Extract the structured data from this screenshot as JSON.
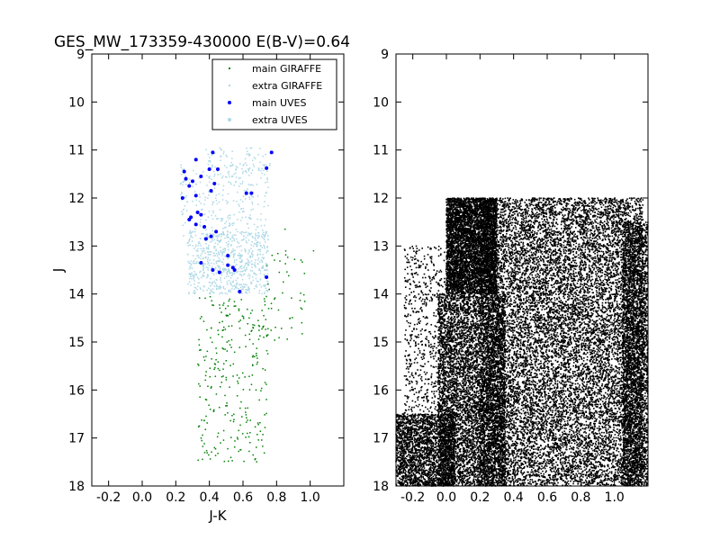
{
  "title": "GES_MW_173359-430000 E(B-V)=0.64",
  "chart_data": [
    {
      "type": "scatter",
      "panel": "left",
      "title": "GES_MW_173359-430000 E(B-V)=0.64",
      "xlabel": "J-K",
      "ylabel": "J",
      "xlim": [
        -0.3,
        1.2
      ],
      "ylim": [
        18,
        9
      ],
      "y_inverted": true,
      "x_ticks": [
        "-0.2",
        "0.0",
        "0.2",
        "0.4",
        "0.6",
        "0.8",
        "1.0"
      ],
      "x_tick_values": [
        -0.2,
        0.0,
        0.2,
        0.4,
        0.6,
        0.8,
        1.0
      ],
      "y_ticks": [
        "9",
        "10",
        "11",
        "12",
        "13",
        "14",
        "15",
        "16",
        "17",
        "18"
      ],
      "y_tick_values": [
        9,
        10,
        11,
        12,
        13,
        14,
        15,
        16,
        17,
        18
      ],
      "grid": false,
      "legend_position": "top-right",
      "series": [
        {
          "name": "main GIRAFFE",
          "color": "#008000",
          "marker": "point",
          "seed": 7,
          "regions": [
            {
              "n": 260,
              "x": [
                0.33,
                0.75
              ],
              "y": [
                14.05,
                17.5
              ]
            },
            {
              "n": 45,
              "x": [
                0.72,
                0.97
              ],
              "y": [
                13.1,
                15.0
              ]
            },
            {
              "n": 20,
              "x": [
                0.4,
                0.8
              ],
              "y": [
                14.0,
                16.0
              ]
            }
          ],
          "points": [
            {
              "x": 1.02,
              "y": 13.1
            },
            {
              "x": 0.85,
              "y": 12.65
            },
            {
              "x": 0.84,
              "y": 13.75
            },
            {
              "x": 0.34,
              "y": 16.75
            },
            {
              "x": 0.38,
              "y": 15.3
            },
            {
              "x": 0.95,
              "y": 14.6
            }
          ]
        },
        {
          "name": "extra GIRAFFE",
          "color": "#add8e6",
          "marker": "point",
          "seed": 11,
          "regions": [
            {
              "n": 700,
              "x": [
                0.27,
                0.75
              ],
              "y": [
                12.7,
                14.0
              ]
            },
            {
              "n": 280,
              "x": [
                0.22,
                0.75
              ],
              "y": [
                11.3,
                12.8
              ]
            },
            {
              "n": 80,
              "x": [
                0.38,
                0.76
              ],
              "y": [
                10.95,
                11.6
              ]
            }
          ],
          "points": []
        },
        {
          "name": "main UVES",
          "color": "#0000ff",
          "marker": "dot",
          "points": [
            {
              "x": 0.42,
              "y": 11.05
            },
            {
              "x": 0.77,
              "y": 11.05
            },
            {
              "x": 0.32,
              "y": 11.2
            },
            {
              "x": 0.25,
              "y": 11.45
            },
            {
              "x": 0.4,
              "y": 11.4
            },
            {
              "x": 0.35,
              "y": 11.55
            },
            {
              "x": 0.45,
              "y": 11.4
            },
            {
              "x": 0.74,
              "y": 11.38
            },
            {
              "x": 0.26,
              "y": 11.6
            },
            {
              "x": 0.3,
              "y": 11.65
            },
            {
              "x": 0.43,
              "y": 11.7
            },
            {
              "x": 0.28,
              "y": 11.75
            },
            {
              "x": 0.41,
              "y": 11.85
            },
            {
              "x": 0.62,
              "y": 11.9
            },
            {
              "x": 0.65,
              "y": 11.9
            },
            {
              "x": 0.32,
              "y": 11.95
            },
            {
              "x": 0.24,
              "y": 12.0
            },
            {
              "x": 0.33,
              "y": 12.3
            },
            {
              "x": 0.35,
              "y": 12.35
            },
            {
              "x": 0.28,
              "y": 12.45
            },
            {
              "x": 0.29,
              "y": 12.4
            },
            {
              "x": 0.37,
              "y": 12.6
            },
            {
              "x": 0.32,
              "y": 12.55
            },
            {
              "x": 0.41,
              "y": 12.8
            },
            {
              "x": 0.44,
              "y": 12.7
            },
            {
              "x": 0.38,
              "y": 12.85
            },
            {
              "x": 0.51,
              "y": 13.2
            },
            {
              "x": 0.51,
              "y": 13.4
            },
            {
              "x": 0.35,
              "y": 13.35
            },
            {
              "x": 0.54,
              "y": 13.45
            },
            {
              "x": 0.46,
              "y": 13.55
            },
            {
              "x": 0.55,
              "y": 13.5
            },
            {
              "x": 0.42,
              "y": 13.5
            },
            {
              "x": 0.74,
              "y": 13.65
            },
            {
              "x": 0.58,
              "y": 13.95
            }
          ]
        },
        {
          "name": "extra UVES",
          "color": "#add8e6",
          "marker": "dot",
          "points": []
        }
      ]
    },
    {
      "type": "scatter",
      "panel": "right",
      "xlim": [
        -0.3,
        1.2
      ],
      "ylim": [
        18,
        9
      ],
      "y_inverted": true,
      "x_ticks": [
        "-0.2",
        "0.0",
        "0.2",
        "0.4",
        "0.6",
        "0.8",
        "1.0"
      ],
      "x_tick_values": [
        -0.2,
        0.0,
        0.2,
        0.4,
        0.6,
        0.8,
        1.0
      ],
      "y_ticks": [
        "9",
        "10",
        "11",
        "12",
        "13",
        "14",
        "15",
        "16",
        "17",
        "18"
      ],
      "y_tick_values": [
        9,
        10,
        11,
        12,
        13,
        14,
        15,
        16,
        17,
        18
      ],
      "grid": false,
      "series": [
        {
          "name": "",
          "color": "#000000",
          "marker": "point",
          "seed": 23,
          "regions": [
            {
              "n": 14000,
              "x": [
                0.2,
                1.17
              ],
              "y": [
                12.0,
                18.0
              ]
            },
            {
              "n": 6000,
              "x": [
                -0.05,
                0.35
              ],
              "y": [
                14.0,
                18.0
              ]
            },
            {
              "n": 5000,
              "x": [
                0.0,
                0.3
              ],
              "y": [
                12.0,
                14.0
              ]
            },
            {
              "n": 2500,
              "x": [
                -0.3,
                0.05
              ],
              "y": [
                16.5,
                18.0
              ]
            },
            {
              "n": 600,
              "x": [
                -0.25,
                0.0
              ],
              "y": [
                13.0,
                16.5
              ]
            },
            {
              "n": 3000,
              "x": [
                1.05,
                1.2
              ],
              "y": [
                12.5,
                18.0
              ]
            }
          ],
          "points": []
        }
      ]
    }
  ],
  "legend": {
    "items": [
      {
        "label": "main GIRAFFE",
        "color": "#008000",
        "marker": "point"
      },
      {
        "label": "extra GIRAFFE",
        "color": "#add8e6",
        "marker": "point"
      },
      {
        "label": "main UVES",
        "color": "#0000ff",
        "marker": "dot"
      },
      {
        "label": "extra UVES",
        "color": "#add8e6",
        "marker": "dot"
      }
    ]
  }
}
